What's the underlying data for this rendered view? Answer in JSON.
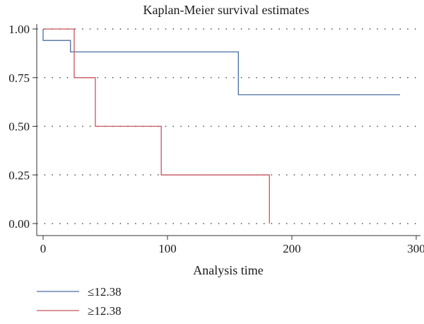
{
  "chart_data": {
    "type": "line",
    "step": true,
    "title": "Kaplan-Meier survival estimates",
    "xlabel": "Analysis time",
    "ylabel": "",
    "xlim": [
      0,
      300
    ],
    "ylim": [
      0,
      1
    ],
    "x_ticks": [
      0,
      100,
      200,
      300
    ],
    "x_tick_labels": [
      "0",
      "100",
      "200",
      "300"
    ],
    "y_ticks": [
      0,
      0.25,
      0.5,
      0.75,
      1.0
    ],
    "y_tick_labels": [
      "0.00",
      "0.25",
      "0.50",
      "0.75",
      "1.00"
    ],
    "grid": "horizontal dotted",
    "legend_position": "bottom",
    "series": [
      {
        "name": "≤12.38",
        "color": "#4a6fa5",
        "x": [
          0,
          0,
          22,
          22,
          157,
          157,
          287
        ],
        "y": [
          1.0,
          0.941,
          0.941,
          0.882,
          0.882,
          0.662,
          0.662
        ]
      },
      {
        "name": "≥12.38",
        "color": "#c8555f",
        "x": [
          0,
          25,
          25,
          42,
          42,
          95,
          95,
          182,
          182
        ],
        "y": [
          1.0,
          1.0,
          0.75,
          0.75,
          0.5,
          0.5,
          0.25,
          0.25,
          0.0
        ]
      }
    ]
  }
}
